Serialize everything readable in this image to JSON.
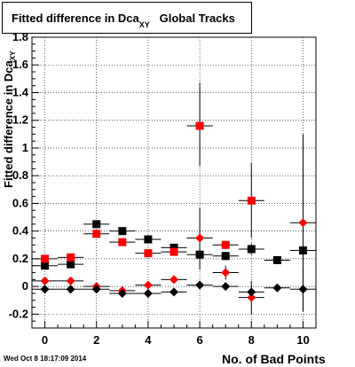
{
  "title": {
    "main": "Fitted difference in Dca",
    "subscript": "XY",
    "suffix": "Global Tracks"
  },
  "footer_timestamp": "Wed Oct  8 18:17:09 2014",
  "chart_data": {
    "type": "scatter",
    "title": "Fitted difference in Dca XY Global Tracks",
    "xlabel": "No. of Bad Points",
    "ylabel": "difference in Dca XY",
    "xlim": [
      -0.5,
      10.5
    ],
    "ylim": [
      -0.3,
      1.8
    ],
    "x_ticks": [
      0,
      2,
      4,
      6,
      8,
      10
    ],
    "y_ticks": [
      -0.2,
      0,
      0.2,
      0.4,
      0.6,
      0.8,
      1,
      1.2,
      1.4,
      1.6,
      1.8
    ],
    "y_tick_labels": [
      "-0.2",
      "0",
      "0.2",
      "0.4",
      "0.6",
      "0.8",
      "1",
      "1.2",
      "1.4",
      "1.6",
      "1.8"
    ],
    "grid": true,
    "series": [
      {
        "marker": "square",
        "color": "#000000",
        "points": [
          {
            "x": 0,
            "y": 0.15,
            "ylo": 0.13,
            "yhi": 0.17
          },
          {
            "x": 1,
            "y": 0.16,
            "ylo": 0.14,
            "yhi": 0.18
          },
          {
            "x": 2,
            "y": 0.45,
            "ylo": 0.43,
            "yhi": 0.47
          },
          {
            "x": 3,
            "y": 0.4,
            "ylo": 0.38,
            "yhi": 0.42
          },
          {
            "x": 4,
            "y": 0.34,
            "ylo": 0.32,
            "yhi": 0.36
          },
          {
            "x": 5,
            "y": 0.28,
            "ylo": 0.26,
            "yhi": 0.3
          },
          {
            "x": 6,
            "y": 0.23,
            "ylo": 0.2,
            "yhi": 0.26
          },
          {
            "x": 7,
            "y": 0.22,
            "ylo": 0.19,
            "yhi": 0.25
          },
          {
            "x": 8,
            "y": 0.27,
            "ylo": 0.23,
            "yhi": 0.31
          },
          {
            "x": 9,
            "y": 0.19,
            "ylo": 0.17,
            "yhi": 0.21
          },
          {
            "x": 10,
            "y": 0.26,
            "ylo": 0.22,
            "yhi": 0.3
          }
        ]
      },
      {
        "marker": "square",
        "color": "#ff0000",
        "points": [
          {
            "x": 0,
            "y": 0.2,
            "ylo": 0.18,
            "yhi": 0.22
          },
          {
            "x": 1,
            "y": 0.21,
            "ylo": 0.19,
            "yhi": 0.23
          },
          {
            "x": 2,
            "y": 0.38,
            "ylo": 0.36,
            "yhi": 0.4
          },
          {
            "x": 3,
            "y": 0.32,
            "ylo": 0.3,
            "yhi": 0.34
          },
          {
            "x": 4,
            "y": 0.24,
            "ylo": 0.22,
            "yhi": 0.26
          },
          {
            "x": 5,
            "y": 0.25,
            "ylo": 0.23,
            "yhi": 0.27
          },
          {
            "x": 6,
            "y": 1.16,
            "ylo": 0.87,
            "yhi": 1.47
          },
          {
            "x": 7,
            "y": 0.3,
            "ylo": 0.27,
            "yhi": 0.33
          },
          {
            "x": 8,
            "y": 0.62,
            "ylo": 0.35,
            "yhi": 0.89
          }
        ]
      },
      {
        "marker": "diamond",
        "color": "#ff0000",
        "points": [
          {
            "x": 0,
            "y": 0.04,
            "ylo": 0.02,
            "yhi": 0.06
          },
          {
            "x": 1,
            "y": 0.04,
            "ylo": 0.02,
            "yhi": 0.06
          },
          {
            "x": 2,
            "y": 0.0,
            "ylo": -0.02,
            "yhi": 0.02
          },
          {
            "x": 3,
            "y": -0.03,
            "ylo": -0.05,
            "yhi": -0.01
          },
          {
            "x": 4,
            "y": 0.01,
            "ylo": -0.01,
            "yhi": 0.03
          },
          {
            "x": 5,
            "y": 0.05,
            "ylo": 0.03,
            "yhi": 0.07
          },
          {
            "x": 6,
            "y": 0.35,
            "ylo": 0.12,
            "yhi": 0.57
          },
          {
            "x": 7,
            "y": 0.1,
            "ylo": 0.05,
            "yhi": 0.15
          },
          {
            "x": 8,
            "y": -0.08,
            "ylo": -0.2,
            "yhi": 0.04
          },
          {
            "x": 10,
            "y": 0.46,
            "ylo": -0.18,
            "yhi": 1.1
          }
        ]
      },
      {
        "marker": "diamond",
        "color": "#000000",
        "points": [
          {
            "x": 0,
            "y": -0.02,
            "ylo": -0.04,
            "yhi": 0.0
          },
          {
            "x": 1,
            "y": -0.02,
            "ylo": -0.04,
            "yhi": 0.0
          },
          {
            "x": 2,
            "y": -0.02,
            "ylo": -0.04,
            "yhi": 0.0
          },
          {
            "x": 3,
            "y": -0.05,
            "ylo": -0.07,
            "yhi": -0.03
          },
          {
            "x": 4,
            "y": -0.05,
            "ylo": -0.07,
            "yhi": -0.03
          },
          {
            "x": 5,
            "y": -0.04,
            "ylo": -0.06,
            "yhi": -0.02
          },
          {
            "x": 6,
            "y": 0.01,
            "ylo": -0.01,
            "yhi": 0.03
          },
          {
            "x": 7,
            "y": 0.0,
            "ylo": -0.02,
            "yhi": 0.02
          },
          {
            "x": 8,
            "y": -0.04,
            "ylo": -0.07,
            "yhi": -0.01
          },
          {
            "x": 9,
            "y": -0.01,
            "ylo": -0.03,
            "yhi": 0.01
          },
          {
            "x": 10,
            "y": -0.02,
            "ylo": -0.18,
            "yhi": 0.14
          }
        ]
      }
    ]
  }
}
